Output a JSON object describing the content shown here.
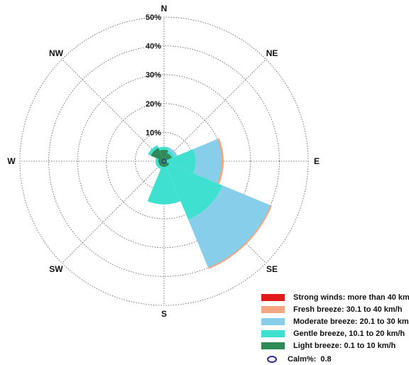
{
  "chart_data": {
    "type": "windrose",
    "directions": [
      "N",
      "NE",
      "E",
      "SE",
      "S",
      "SW",
      "W",
      "NW"
    ],
    "radial_ticks": [
      "10%",
      "20%",
      "30%",
      "40%",
      "50%"
    ],
    "radial_max": 50,
    "series": [
      {
        "name": "Light breeze: 0.1 to 10 km/h",
        "color": "#2e8b57",
        "values": [
          4,
          3,
          1,
          2,
          2,
          2,
          2,
          5
        ]
      },
      {
        "name": "Gentle breeze, 10.1 to 20 km/h",
        "color": "#40e0d0",
        "values": [
          1,
          1,
          10,
          20,
          13,
          1,
          1,
          1
        ]
      },
      {
        "name": "Moderate breeze: 20.1 to 30 km/h",
        "color": "#87ceeb",
        "values": [
          0,
          1,
          9,
          18,
          0,
          0,
          0,
          0
        ]
      },
      {
        "name": "Fresh breeze: 30.1 to 40 km/h",
        "color": "#f4a582",
        "values": [
          0,
          0,
          0.7,
          0.5,
          0,
          0,
          0,
          0
        ]
      },
      {
        "name": "Strong winds: more than 40 km/h",
        "color": "#e31a1c",
        "values": [
          0,
          0,
          0,
          0,
          0,
          0,
          0,
          0
        ]
      }
    ],
    "legend_order": [
      4,
      3,
      2,
      1,
      0
    ],
    "calm": {
      "label": "Calm%:",
      "value": "0.8"
    }
  }
}
